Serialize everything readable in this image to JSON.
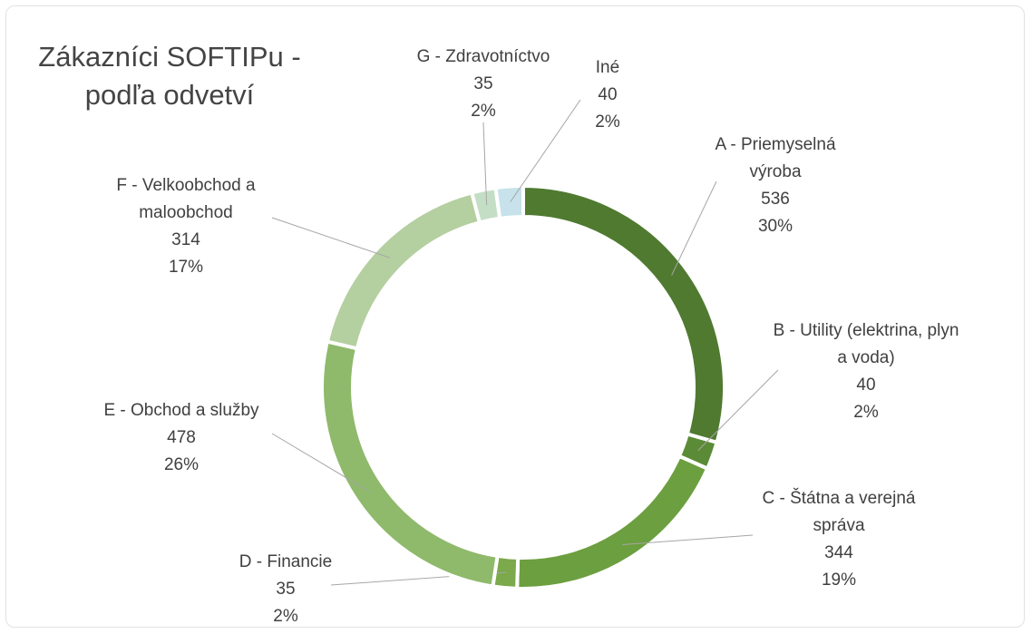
{
  "chart_data": {
    "type": "donut",
    "title": "Zákazníci SOFTIPu - podľa odvetví",
    "categories": [
      "A - Priemyselná výroba",
      "B - Utility (elektrina, plyn a voda)",
      "C - Štátna a verejná správa",
      "D - Financie",
      "E - Obchod a služby",
      "F - Velkoobchod a maloobchod",
      "G - Zdravotníctvo",
      "Iné"
    ],
    "values": [
      536,
      40,
      344,
      35,
      478,
      314,
      35,
      40
    ],
    "percent_labels": [
      "30%",
      "2%",
      "19%",
      "2%",
      "26%",
      "17%",
      "2%",
      "2%"
    ],
    "colors": [
      "#4f7a30",
      "#5b8b36",
      "#6c9f3f",
      "#7ba94b",
      "#8fb96b",
      "#b4cfa0",
      "#c4dec6",
      "#c7e2ea"
    ]
  }
}
